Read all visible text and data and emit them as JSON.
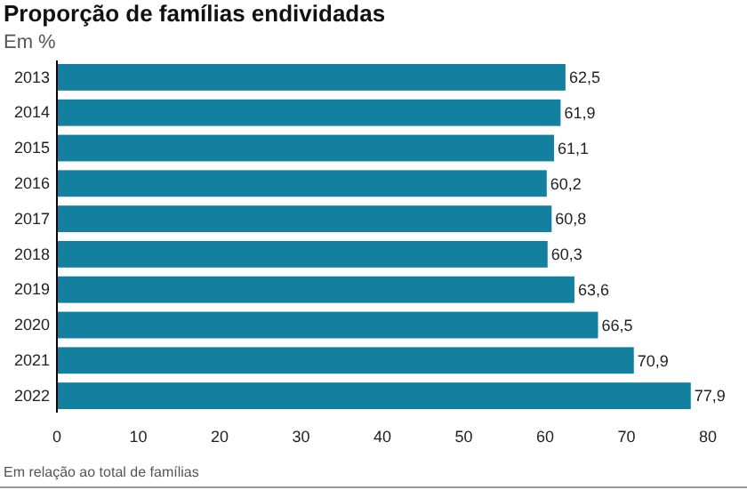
{
  "chart_data": {
    "type": "bar",
    "orientation": "horizontal",
    "title": "Proporção de famílias endividadas",
    "subtitle": "Em %",
    "categories": [
      "2013",
      "2014",
      "2015",
      "2016",
      "2017",
      "2018",
      "2019",
      "2020",
      "2021",
      "2022"
    ],
    "values": [
      62.5,
      61.9,
      61.1,
      60.2,
      60.8,
      60.3,
      63.6,
      66.5,
      70.9,
      77.9
    ],
    "value_labels": [
      "62,5",
      "61,9",
      "61,1",
      "60,2",
      "60,8",
      "60,3",
      "63,6",
      "66,5",
      "70,9",
      "77,9"
    ],
    "color": "#13809f",
    "xlim": [
      0,
      80
    ],
    "xticks": [
      0,
      10,
      20,
      30,
      40,
      50,
      60,
      70,
      80
    ],
    "grid": false,
    "annotations": [
      "Em relação ao total de famílias"
    ]
  }
}
